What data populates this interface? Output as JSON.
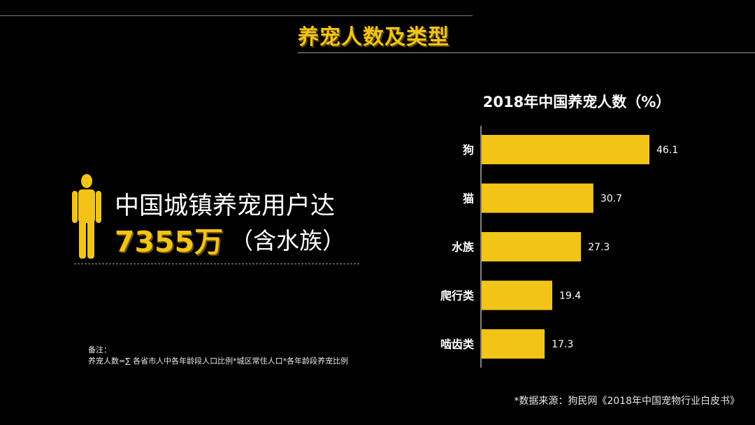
{
  "title": "养宠人数及类型",
  "headline": "中国城镇养宠用户达",
  "stat": {
    "number": "7355万",
    "note": "（含水族）"
  },
  "note": {
    "label": "备注：",
    "text": "养宠人数=∑ 各省市人中各年龄段人口比例*城区常住人口*各年龄段养宠比例"
  },
  "source": "*数据来源：狗民网《2018年中国宠物行业白皮书》",
  "colors": {
    "accent": "#f2c418",
    "background": "#000000",
    "text": "#ffffff"
  },
  "icons": {
    "person": "person-icon"
  },
  "chart_data": {
    "type": "bar",
    "orientation": "horizontal",
    "title": "2018年中国养宠人数（%）",
    "categories": [
      "狗",
      "猫",
      "水族",
      "爬行类",
      "啮齿类"
    ],
    "values": [
      46.1,
      30.7,
      27.3,
      19.4,
      17.3
    ],
    "value_labels": [
      "46.1",
      "30.7",
      "27.3",
      "19.4",
      "17.3"
    ],
    "xlim": [
      0,
      46.1
    ],
    "grid": false,
    "legend": "none",
    "bar_color": "#f2c418"
  }
}
